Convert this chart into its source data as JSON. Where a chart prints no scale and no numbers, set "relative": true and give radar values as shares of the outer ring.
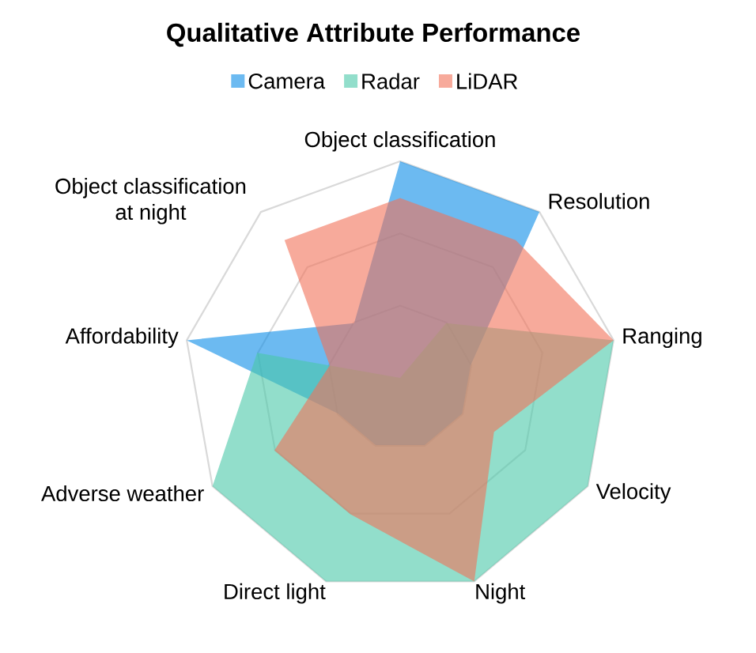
{
  "chart_data": {
    "type": "radar",
    "title": "Qualitative Attribute Performance",
    "categories": [
      "Object classification",
      "Resolution",
      "Ranging",
      "Velocity",
      "Night",
      "Direct light",
      "Adverse weather",
      "Affordability",
      "Object classification at night"
    ],
    "series": [
      {
        "name": "Camera",
        "color": "#0a8ce8",
        "values": [
          1,
          1,
          0.33,
          0.33,
          0.33,
          0.33,
          0.33,
          1,
          0.33
        ]
      },
      {
        "name": "Radar",
        "color": "#49c8a8",
        "values": [
          0,
          0.33,
          1,
          1,
          1,
          1,
          1,
          0.67,
          0
        ]
      },
      {
        "name": "LiDAR",
        "color": "#f27158",
        "values": [
          0.83,
          0.83,
          1,
          0.5,
          1,
          0.67,
          0.67,
          0.33,
          0.83
        ]
      }
    ],
    "relative": true,
    "grid": true,
    "legend": "top"
  }
}
